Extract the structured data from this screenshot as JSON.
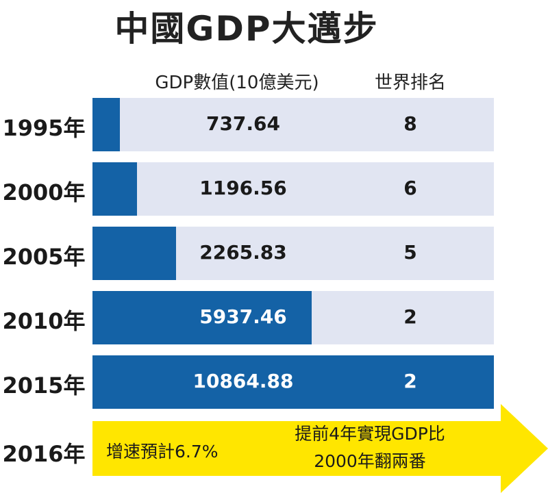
{
  "title": "中國GDP大邁步",
  "headers": {
    "gdp": "GDP數值(10億美元)",
    "rank": "世界排名"
  },
  "colors": {
    "bar": "#1462a6",
    "track": "#e1e5f2",
    "arrow": "#ffe600"
  },
  "chart_data": {
    "type": "bar",
    "orientation": "horizontal",
    "title": "中國GDP大邁步",
    "categories": [
      "1995年",
      "2000年",
      "2005年",
      "2010年",
      "2015年"
    ],
    "series": [
      {
        "name": "GDP數值(10億美元)",
        "values": [
          737.64,
          1196.56,
          2265.83,
          5937.46,
          10864.88
        ],
        "labels": [
          "737.64",
          "1196.56",
          "2265.83",
          "5937.46",
          "10864.88"
        ]
      }
    ],
    "ranks": [
      "8",
      "6",
      "5",
      "2",
      "2"
    ],
    "xlim": [
      0,
      10864.88
    ]
  },
  "forecast": {
    "year": "2016年",
    "left_text": "增速預計6.7%",
    "right_line1": "提前4年實現GDP比",
    "right_line2": "2000年翻兩番"
  }
}
